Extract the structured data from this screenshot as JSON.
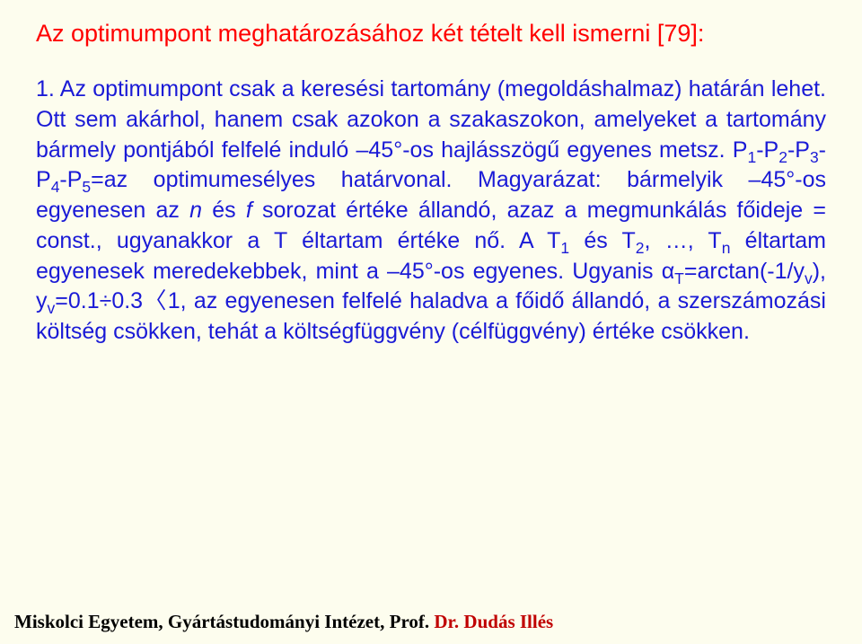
{
  "colors": {
    "background": "#fdfdee",
    "heading": "#ff0000",
    "body": "#1a1ad6",
    "footer_black": "#000000",
    "footer_red": "#c00000"
  },
  "typography": {
    "body_font": "Arial",
    "body_fontsize_pt": 20,
    "heading_fontsize_pt": 21,
    "footer_font": "Times New Roman",
    "footer_fontsize_pt": 16,
    "footer_weight": "bold",
    "line_height": 1.35,
    "body_align": "justify"
  },
  "heading": {
    "text": "Az optimumpont meghatározásához két tételt kell ismerni [79]:"
  },
  "list": {
    "num": "1.",
    "seg1": "Az optimumpont csak a keresési tartomány (megoldáshalmaz) határán lehet. Ott sem akárhol, hanem csak azokon a szakaszokon, amelyeket a tartomány bármely pontjából felfelé induló –45°-os hajlásszögű egyenes metsz. P",
    "p1s": "1",
    "dashP2": "-P",
    "p2s": "2",
    "dashP3": "-P",
    "p3s": "3",
    "dashP4": "-P",
    "p4s": "4",
    "dashP5": "-P",
    "p5s": "5",
    "seg2": "=az optimumesélyes határvonal. Magyarázat: bármelyik –45°-os egyenesen az ",
    "n_it": "n",
    "seg3": " és ",
    "f_it": "f",
    "seg4": " sorozat értéke állandó, azaz a megmunkálás főideje = const., ugyanakkor a T éltartam értéke nő. A T",
    "t1s": "1",
    "seg5": " és T",
    "t2s": "2",
    "seg6": ", …, T",
    "tns": "n",
    "seg7": " éltartam egyenesek meredekebbek, mint a –45°-os egyenes. Ugyanis α",
    "ats": "T",
    "seg8": "=arctan(-1/y",
    "yv1": "v",
    "seg9": "), y",
    "yv2": "v",
    "seg10": "=0.1÷0.3〈1, az egyenesen felfelé haladva a főidő állandó, a szerszámozási költség csökken, tehát a költségfüggvény (célfüggvény) értéke csökken."
  },
  "footer": {
    "part1": "Miskolci Egyetem, Gyártástudományi Intézet, Prof. ",
    "part2": "Dr. Dudás Illés"
  }
}
